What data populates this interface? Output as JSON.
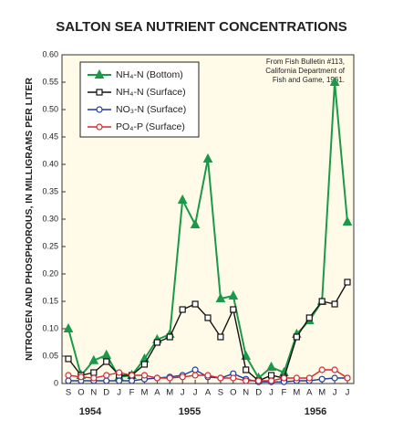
{
  "chart_data": {
    "type": "line",
    "title": "SALTON SEA NUTRIENT CONCENTRATIONS",
    "y_label": "NITROGEN AND PHOSPHOROUS, IN MILLIGRAMS PER LITER",
    "annotation_lines": [
      "From Fish Bulletin #113,",
      "California Department of",
      "Fish and Game, 1961."
    ],
    "year_labels": [
      "1954",
      "1955",
      "1956"
    ],
    "categories": [
      "S",
      "O",
      "N",
      "D",
      "J",
      "F",
      "M",
      "A",
      "M",
      "J",
      "J",
      "A",
      "S",
      "O",
      "N",
      "D",
      "J",
      "F",
      "M",
      "A",
      "M",
      "J",
      "J"
    ],
    "ylim": [
      0,
      0.6
    ],
    "yticks": [
      0,
      0.05,
      {
        "value": 0.1,
        "label": "0.10"
      },
      0.15,
      {
        "value": 0.2,
        "label": "0.20"
      },
      0.25,
      {
        "value": 0.3,
        "label": "0.30"
      },
      0.35,
      {
        "value": 0.4,
        "label": "0.40"
      },
      0.45,
      {
        "value": 0.5,
        "label": "0.50"
      },
      0.55,
      {
        "value": 0.6,
        "label": "0.60"
      }
    ],
    "legend": "upper left",
    "series": [
      {
        "name": "NH₄-N (Bottom)",
        "color": "#1a9a48",
        "marker": "triangle",
        "values": [
          0.1,
          0.015,
          0.042,
          0.052,
          0.012,
          0.015,
          0.045,
          0.08,
          0.09,
          0.335,
          0.29,
          0.41,
          0.155,
          0.16,
          0.05,
          0.01,
          0.03,
          0.02,
          0.09,
          0.115,
          0.15,
          0.55,
          0.295
        ]
      },
      {
        "name": "NH₄-N (Surface)",
        "color": "#111111",
        "marker": "square",
        "values": [
          0.045,
          0.015,
          0.02,
          0.04,
          0.015,
          0.015,
          0.035,
          0.075,
          0.085,
          0.135,
          0.145,
          0.12,
          0.085,
          0.135,
          0.025,
          0.005,
          0.015,
          0.01,
          0.085,
          0.12,
          0.15,
          0.145,
          0.185
        ]
      },
      {
        "name": "NO₃-N (Surface)",
        "color": "#1f3c9c",
        "marker": "circle",
        "values": [
          0.005,
          0.005,
          0.005,
          0.005,
          0.005,
          0.005,
          0.008,
          0.01,
          0.012,
          0.015,
          0.025,
          0.012,
          0.01,
          0.018,
          0.008,
          0.003,
          0.003,
          0.003,
          0.005,
          0.005,
          0.008,
          0.01,
          0.01
        ]
      },
      {
        "name": "PO₄-P (Surface)",
        "color": "#d7282f",
        "marker": "circle",
        "values": [
          0.015,
          0.012,
          0.01,
          0.015,
          0.02,
          0.015,
          0.015,
          0.01,
          0.01,
          0.012,
          0.015,
          0.015,
          0.01,
          0.01,
          0.005,
          0.005,
          0.005,
          0.01,
          0.01,
          0.01,
          0.025,
          0.025,
          0.01
        ]
      }
    ]
  }
}
